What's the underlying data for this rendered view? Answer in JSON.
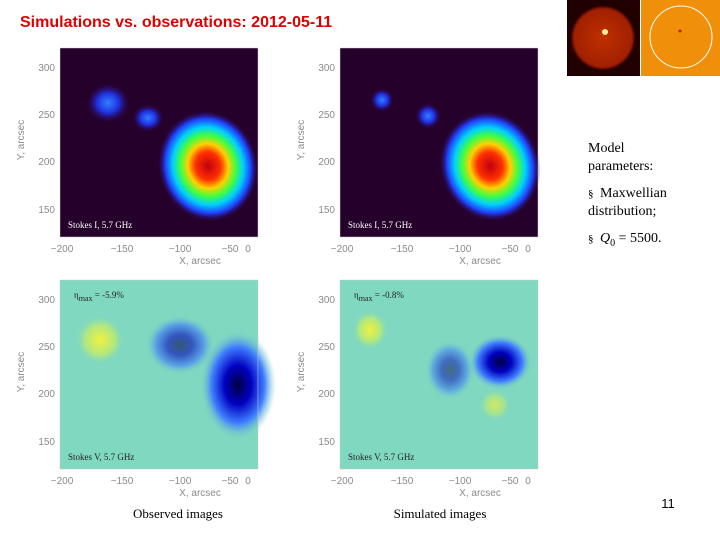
{
  "title": "Simulations vs. observations: 2012-05-11",
  "axes": {
    "x_title": "X, arcsec",
    "y_title": "Y, arcsec",
    "xticks": [
      "−200",
      "−150",
      "−100",
      "−50",
      "0"
    ],
    "yticks": [
      "300",
      "250",
      "200",
      "150"
    ]
  },
  "panels": [
    {
      "label": "Stokes I, 5.7 GHz"
    },
    {
      "label": "Stokes I, 5.7 GHz"
    },
    {
      "label": "Stokes V, 5.7 GHz",
      "eta": {
        "symbol": "η",
        "subscript": "max",
        "text": " = -5.9%"
      }
    },
    {
      "label": "Stokes V, 5.7 GHz",
      "eta": {
        "symbol": "η",
        "subscript": "max",
        "text": " = -0.8%"
      }
    }
  ],
  "captions": [
    "Observed images",
    "Simulated images"
  ],
  "model": {
    "heading": "Model parameters:",
    "items": [
      {
        "bullet": "§",
        "text": "Maxwellian distribution;"
      },
      {
        "bullet": "§",
        "symbol": "Q",
        "subscript": "0",
        "text": " = 5500."
      }
    ]
  },
  "page_number": "11"
}
